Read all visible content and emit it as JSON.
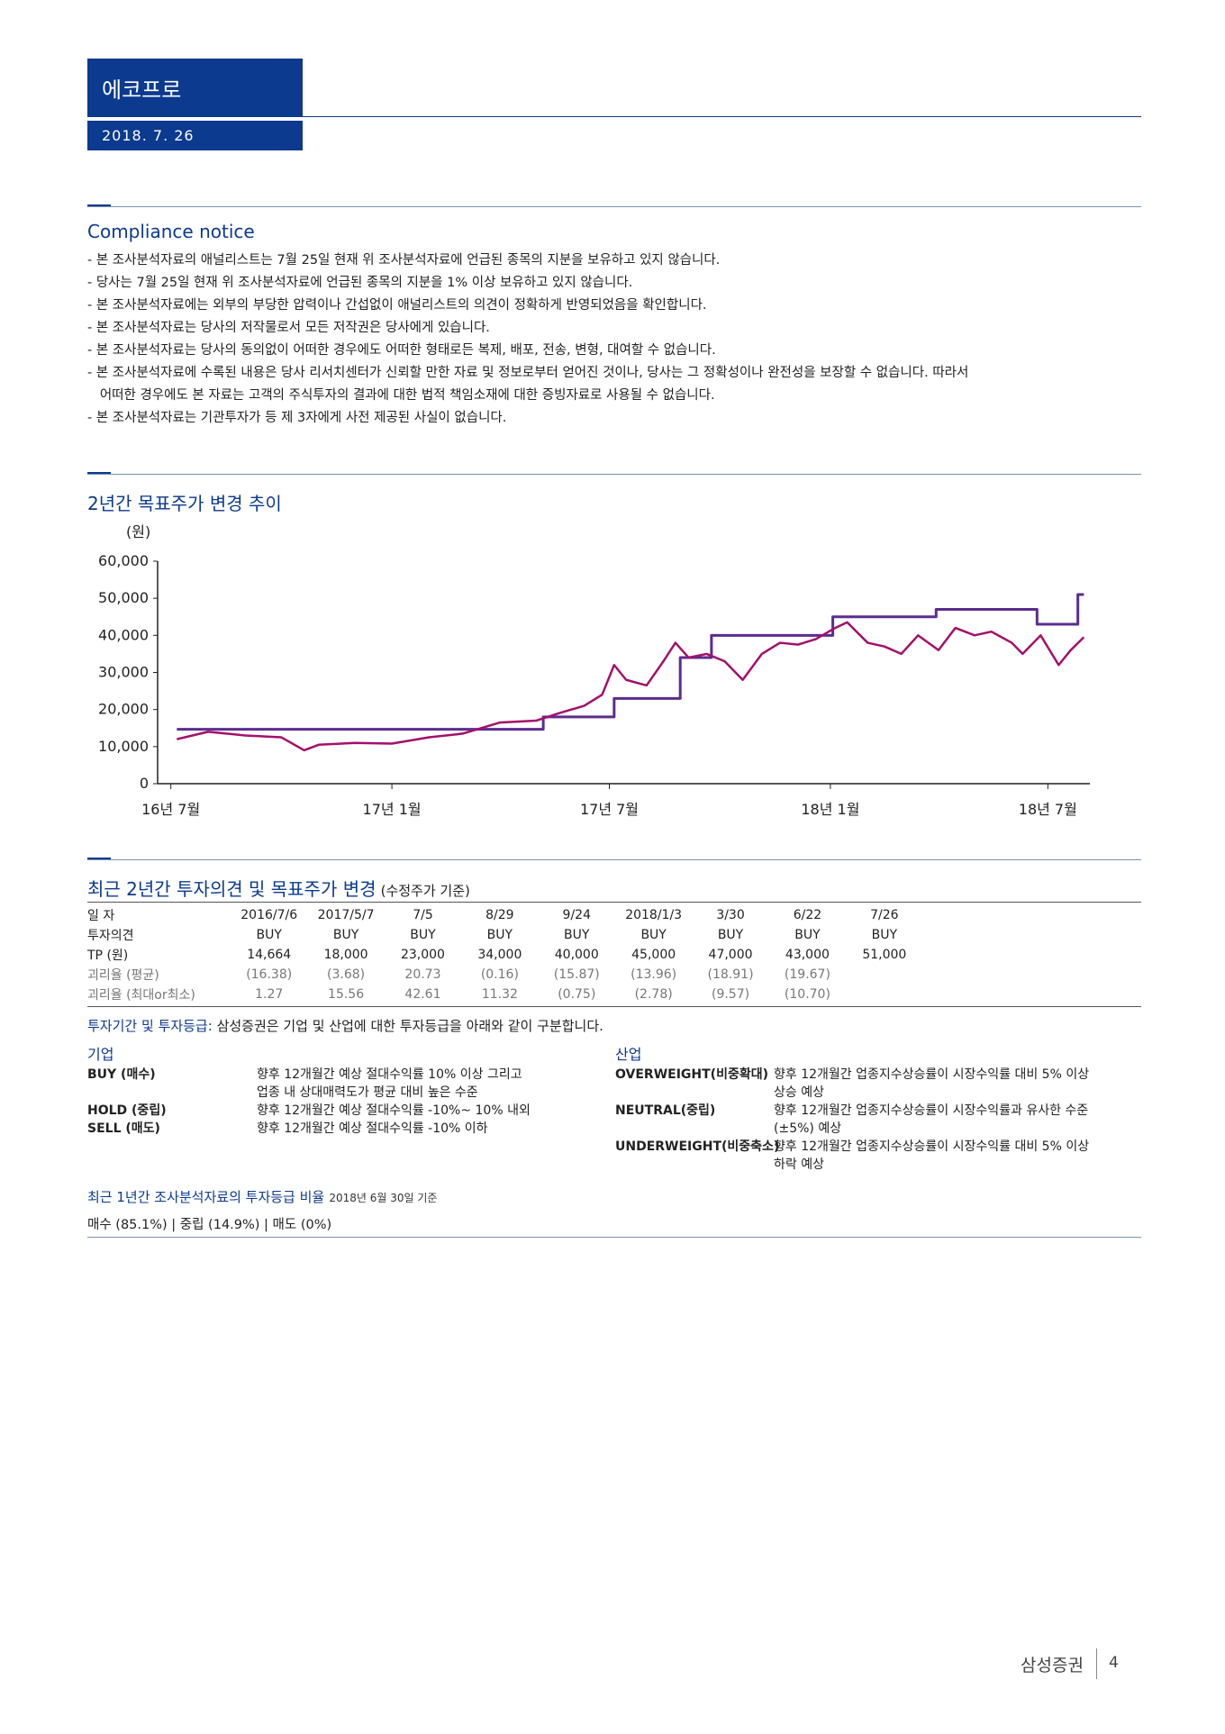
{
  "header": {
    "company": "에코프로",
    "date": "2018. 7. 26"
  },
  "compliance": {
    "title": "Compliance notice",
    "lines": [
      "- 본 조사분석자료의 애널리스트는 7월 25일 현재 위 조사분석자료에 언급된 종목의 지분을 보유하고 있지 않습니다.",
      "- 당사는 7월 25일 현재 위 조사분석자료에 언급된 종목의 지분을 1% 이상 보유하고 있지 않습니다.",
      "- 본 조사분석자료에는 외부의 부당한 압력이나 간섭없이 애널리스트의 의견이 정확하게 반영되었음을 확인합니다.",
      "- 본 조사분석자료는 당사의 저작물로서 모든 저작권은 당사에게 있습니다.",
      "- 본 조사분석자료는 당사의 동의없이 어떠한 경우에도 어떠한 형태로든 복제, 배포, 전송, 변형, 대여할 수 없습니다.",
      "- 본 조사분석자료에 수록된 내용은 당사 리서치센터가 신뢰할 만한 자료 및 정보로부터 얻어진 것이나, 당사는 그 정확성이나 완전성을 보장할 수 없습니다. 따라서",
      "   어떠한 경우에도 본 자료는 고객의 주식투자의 결과에 대한 법적 책임소재에 대한 증빙자료로 사용될 수 없습니다.",
      "- 본 조사분석자료는 기관투자가 등 제 3자에게 사전 제공된 사실이 없습니다."
    ]
  },
  "chart_section": {
    "title": "2년간 목표주가 변경 추이"
  },
  "chart_data": {
    "type": "line",
    "ylabel": "(원)",
    "ylim": [
      0,
      60000
    ],
    "yticks": [
      "60,000",
      "50,000",
      "40,000",
      "30,000",
      "20,000",
      "10,000",
      "0"
    ],
    "xticks": [
      "16년 7월",
      "17년 1월",
      "17년 7월",
      "18년 1월",
      "18년 7월"
    ],
    "series": [
      {
        "color": "#5b2d8e",
        "x": [
          "2016-07-06",
          "2017-05-07",
          "2017-07-05",
          "2017-08-29",
          "2017-09-24",
          "2018-01-03",
          "2018-03-30",
          "2018-06-22",
          "2018-07-26",
          "2018-07-31"
        ],
        "values": [
          14664,
          18000,
          23000,
          34000,
          40000,
          45000,
          47000,
          43000,
          51000,
          51000
        ],
        "step": true
      },
      {
        "color": "#a3106b",
        "x": [
          "2016-07-06",
          "2016-08-01",
          "2016-09-01",
          "2016-10-01",
          "2016-10-20",
          "2016-11-01",
          "2016-12-01",
          "2017-01-01",
          "2017-02-01",
          "2017-03-01",
          "2017-04-01",
          "2017-05-01",
          "2017-05-20",
          "2017-06-10",
          "2017-06-25",
          "2017-07-05",
          "2017-07-15",
          "2017-08-01",
          "2017-08-15",
          "2017-08-25",
          "2017-09-05",
          "2017-09-20",
          "2017-10-05",
          "2017-10-20",
          "2017-11-05",
          "2017-11-20",
          "2017-12-05",
          "2017-12-20",
          "2018-01-05",
          "2018-01-15",
          "2018-02-01",
          "2018-02-15",
          "2018-03-01",
          "2018-03-15",
          "2018-04-01",
          "2018-04-15",
          "2018-05-01",
          "2018-05-15",
          "2018-06-01",
          "2018-06-10",
          "2018-06-25",
          "2018-07-10",
          "2018-07-20",
          "2018-07-31"
        ],
        "values": [
          12000,
          14000,
          13000,
          12500,
          9000,
          10500,
          11000,
          10800,
          12500,
          13500,
          16500,
          17000,
          19000,
          21000,
          24000,
          32000,
          28000,
          26500,
          33000,
          38000,
          34000,
          35000,
          33000,
          28000,
          35000,
          38000,
          37500,
          39000,
          42000,
          43500,
          38000,
          37000,
          35000,
          40000,
          36000,
          42000,
          40000,
          41000,
          38000,
          35000,
          40000,
          32000,
          36000,
          39500
        ]
      }
    ]
  },
  "history": {
    "title": "최근 2년간 투자의견 및 목표주가 변경",
    "note": "(수정주가 기준)",
    "row_labels": [
      "일   자",
      "투자의견",
      "TP (원)",
      "괴리율 (평균)",
      "괴리율 (최대or최소)"
    ],
    "dates": [
      "2016/7/6",
      "2017/5/7",
      "7/5",
      "8/29",
      "9/24",
      "2018/1/3",
      "3/30",
      "6/22",
      "7/26"
    ],
    "opinions": [
      "BUY",
      "BUY",
      "BUY",
      "BUY",
      "BUY",
      "BUY",
      "BUY",
      "BUY",
      "BUY"
    ],
    "tp": [
      "14,664",
      "18,000",
      "23,000",
      "34,000",
      "40,000",
      "45,000",
      "47,000",
      "43,000",
      "51,000"
    ],
    "gap_avg": [
      "(16.38)",
      "(3.68)",
      "20.73",
      "(0.16)",
      "(15.87)",
      "(13.96)",
      "(18.91)",
      "(19.67)",
      ""
    ],
    "gap_max": [
      "1.27",
      "15.56",
      "42.61",
      "11.32",
      "(0.75)",
      "(2.78)",
      "(9.57)",
      "(10.70)",
      ""
    ]
  },
  "grades": {
    "intro_label": "투자기간 및 투자등급:",
    "intro_text": "삼성증권은 기업 및 산업에 대한 투자등급을 아래와 같이 구분합니다.",
    "company": {
      "title": "기업",
      "items": [
        {
          "label": "BUY (매수)",
          "desc1": "향후 12개월간 예상 절대수익률 10% 이상 그리고",
          "desc2": "업종 내 상대매력도가 평균 대비 높은 수준"
        },
        {
          "label": "HOLD (중립)",
          "desc1": "향후 12개월간 예상 절대수익률 -10%~ 10% 내외",
          "desc2": ""
        },
        {
          "label": "SELL (매도)",
          "desc1": "향후 12개월간 예상 절대수익률 -10% 이하",
          "desc2": ""
        }
      ]
    },
    "industry": {
      "title": "산업",
      "items": [
        {
          "label": "OVERWEIGHT(비중확대)",
          "desc1": "향후 12개월간 업종지수상승률이 시장수익률 대비 5% 이상",
          "desc2": "상승 예상"
        },
        {
          "label": "NEUTRAL(중립)",
          "desc1": "향후 12개월간 업종지수상승률이 시장수익률과 유사한 수준",
          "desc2": "(±5%) 예상"
        },
        {
          "label": "UNDERWEIGHT(비중축소)",
          "desc1": "향후 12개월간 업종지수상승률이 시장수익률 대비 5% 이상",
          "desc2": "하락 예상"
        }
      ]
    }
  },
  "ratio": {
    "title": "최근 1년간 조사분석자료의 투자등급 비율",
    "basis": "2018년 6월 30일 기준",
    "text": "매수 (85.1%) | 중립 (14.9%) | 매도 (0%)"
  },
  "footer": {
    "brand": "삼성증권",
    "page": "4"
  }
}
